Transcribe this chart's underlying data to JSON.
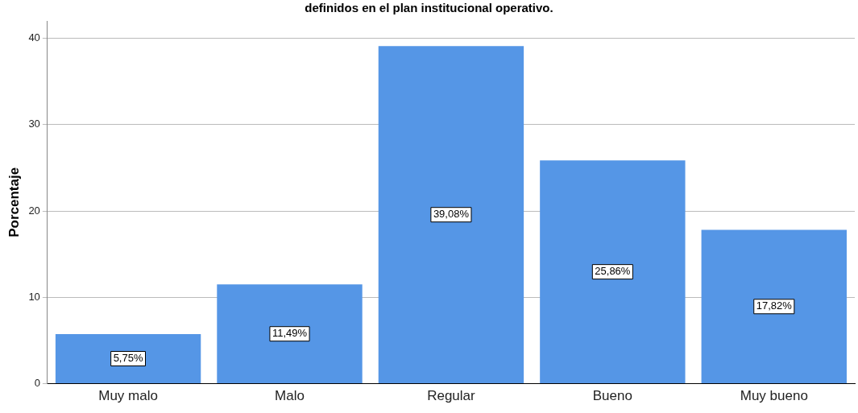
{
  "chart_data": {
    "type": "bar",
    "title": "definidos en el plan institucional operativo.",
    "ylabel": "Porcentaje",
    "categories": [
      "Muy malo",
      "Malo",
      "Regular",
      "Bueno",
      "Muy bueno"
    ],
    "values": [
      5.75,
      11.49,
      39.08,
      25.86,
      17.82
    ],
    "color": "#5596e6",
    "value_labels": [
      "5,75%",
      "11,49%",
      "39,08%",
      "25,86%",
      "17,82%"
    ],
    "ylim": [
      0,
      42
    ],
    "yticks": [
      0,
      10,
      20,
      30,
      40
    ],
    "grid": "y"
  }
}
